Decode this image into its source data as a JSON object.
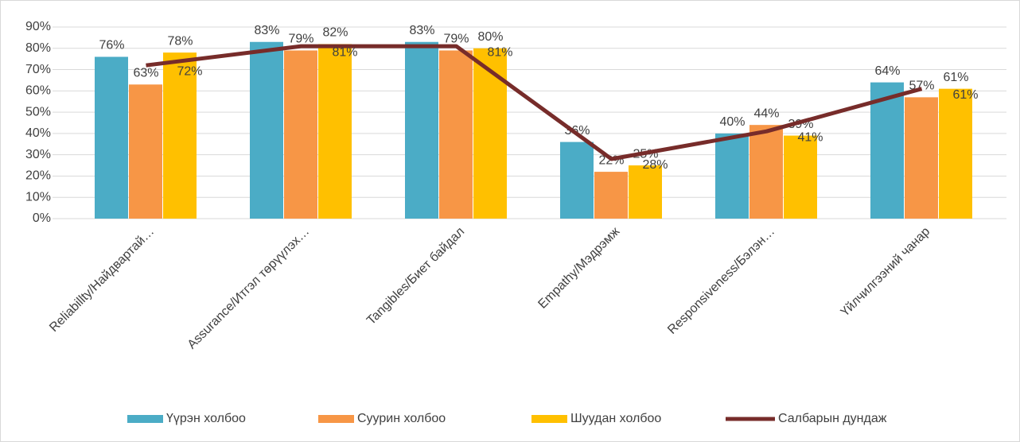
{
  "chart_data": {
    "type": "bar-line",
    "categories": [
      "Reliabillty/Найдвартай…",
      "Assurance/Итгэл төрүүлэх…",
      "Tangibles/Биет байдал",
      "Empathy/Мэдрэмж",
      "Responsiveness/Бэлэн…",
      "Үйлчилгээний чанар"
    ],
    "series": [
      {
        "name": "Үүрэн холбоо",
        "type": "bar",
        "color": "#4bacc6",
        "values": [
          76,
          83,
          83,
          36,
          40,
          64
        ],
        "value_labels": [
          "76%",
          "83%",
          "83%",
          "36%",
          "40%",
          "64%"
        ]
      },
      {
        "name": "Суурин холбоо",
        "type": "bar",
        "color": "#f79646",
        "values": [
          63,
          79,
          79,
          22,
          44,
          57
        ],
        "value_labels": [
          "63%",
          "79%",
          "79%",
          "22%",
          "44%",
          "57%"
        ]
      },
      {
        "name": "Шуудан холбоо",
        "type": "bar",
        "color": "#ffc000",
        "values": [
          78,
          82,
          80,
          25,
          39,
          61
        ],
        "value_labels": [
          "78%",
          "82%",
          "80%",
          "25%",
          "39%",
          "61%"
        ]
      },
      {
        "name": "Салбарын дундаж",
        "type": "line",
        "color": "#772c2a",
        "values": [
          72,
          81,
          81,
          28,
          41,
          61
        ],
        "value_labels": [
          "72%",
          "81%",
          "81%",
          "28%",
          "41%",
          "61%"
        ]
      }
    ],
    "ylim": [
      0,
      90
    ],
    "yticks": [
      {
        "value": 0,
        "label": "0%"
      },
      {
        "value": 10,
        "label": "10%"
      },
      {
        "value": 20,
        "label": "20%"
      },
      {
        "value": 30,
        "label": "30%"
      },
      {
        "value": 40,
        "label": "40%"
      },
      {
        "value": 50,
        "label": "50%"
      },
      {
        "value": 60,
        "label": "60%"
      },
      {
        "value": 70,
        "label": "70%"
      },
      {
        "value": 80,
        "label": "80%"
      },
      {
        "value": 90,
        "label": "90%"
      }
    ],
    "grid": true,
    "legend": "bottom"
  }
}
